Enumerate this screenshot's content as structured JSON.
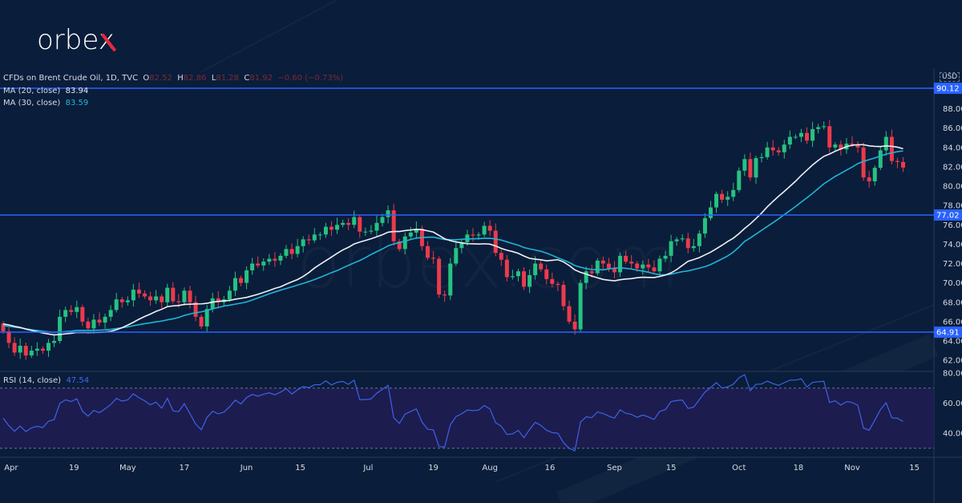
{
  "logo": {
    "text": "orbex"
  },
  "watermark": "orbex.com",
  "legend": {
    "symbol": "CFDs on Brent Crude Oil, 1D, TVC",
    "o_label": "O",
    "o": "82.52",
    "h_label": "H",
    "h": "82.86",
    "l_label": "L",
    "l": "81.28",
    "c_label": "C",
    "c": "81.92",
    "change": "−0.60 (−0.73%)",
    "ma20_label": "MA (20, close)",
    "ma20": "83.94",
    "ma30_label": "MA (30, close)",
    "ma30": "83.59",
    "rsi_label": "RSI (14, close)",
    "rsi": "47.54"
  },
  "colors": {
    "up": "#26c281",
    "down": "#ec3a4c",
    "ma20": "#eef0f4",
    "ma30": "#1fb5d6",
    "level": "#2962ff",
    "rsi": "#3d62e8",
    "rsi_band": "#1d1c4f"
  },
  "chart_data": {
    "type": "candlestick",
    "title": "CFDs on Brent Crude Oil, 1D, TVC",
    "currency": "USD",
    "ylim": [
      60.6,
      90.5
    ],
    "y_ticks": [
      "88.00",
      "86.00",
      "84.00",
      "82.00",
      "80.00",
      "78.00",
      "76.00",
      "74.00",
      "72.00",
      "70.00",
      "68.00",
      "66.00",
      "64.00",
      "62.00"
    ],
    "levels": [
      "90.12",
      "77.02",
      "64.91"
    ],
    "x_ticks": [
      {
        "label": "Apr",
        "bar": 1.4
      },
      {
        "label": "19",
        "bar": 12.5
      },
      {
        "label": "May",
        "bar": 22
      },
      {
        "label": "17",
        "bar": 32
      },
      {
        "label": "Jun",
        "bar": 43
      },
      {
        "label": "15",
        "bar": 52.5
      },
      {
        "label": "Jul",
        "bar": 64.5
      },
      {
        "label": "19",
        "bar": 76
      },
      {
        "label": "Aug",
        "bar": 86
      },
      {
        "label": "16",
        "bar": 96.6
      },
      {
        "label": "Sep",
        "bar": 108
      },
      {
        "label": "15",
        "bar": 118
      },
      {
        "label": "Oct",
        "bar": 130
      },
      {
        "label": "18",
        "bar": 140.5
      },
      {
        "label": "Nov",
        "bar": 150
      },
      {
        "label": "15",
        "bar": 161
      }
    ],
    "first_open": 65.8,
    "close": [
      65.0,
      63.8,
      62.8,
      63.5,
      62.5,
      63.0,
      63.2,
      63.0,
      63.8,
      64.0,
      66.5,
      67.2,
      67.0,
      67.5,
      66.0,
      65.3,
      66.2,
      65.9,
      66.5,
      67.2,
      68.3,
      68.0,
      68.2,
      69.3,
      68.9,
      68.6,
      68.2,
      68.6,
      68.0,
      69.5,
      68.1,
      68.0,
      69.2,
      68.0,
      66.5,
      65.5,
      67.3,
      68.4,
      68.0,
      68.3,
      69.2,
      70.5,
      70.0,
      71.3,
      72.0,
      71.8,
      72.2,
      72.5,
      72.3,
      72.8,
      73.5,
      73.0,
      73.8,
      74.5,
      74.4,
      75.0,
      75.0,
      75.8,
      75.5,
      76.0,
      76.2,
      76.0,
      76.8,
      75.3,
      75.3,
      75.4,
      76.2,
      76.8,
      77.5,
      74.3,
      73.5,
      74.8,
      75.2,
      75.6,
      73.8,
      72.6,
      72.5,
      68.8,
      68.7,
      72.0,
      73.6,
      74.2,
      75.0,
      74.9,
      75.0,
      75.9,
      75.4,
      73.1,
      72.4,
      70.6,
      70.7,
      71.2,
      69.6,
      70.8,
      72.0,
      71.4,
      70.4,
      69.9,
      69.8,
      67.6,
      66.0,
      65.2,
      70.0,
      71.2,
      71.0,
      72.3,
      72.0,
      71.5,
      71.1,
      72.8,
      72.2,
      72.0,
      71.5,
      71.9,
      71.6,
      71.2,
      72.5,
      72.8,
      74.3,
      74.5,
      74.6,
      73.6,
      73.8,
      75.1,
      76.7,
      77.8,
      79.2,
      78.6,
      78.9,
      79.6,
      81.6,
      82.8,
      80.9,
      82.9,
      83.0,
      84.0,
      83.7,
      83.5,
      84.3,
      85.1,
      85.1,
      85.5,
      84.7,
      85.9,
      86.1,
      86.2,
      84.0,
      84.3,
      83.8,
      84.4,
      84.3,
      84.0,
      80.9,
      80.5,
      81.9,
      83.7,
      85.1,
      82.6,
      82.5,
      81.92
    ],
    "ma_periods": [
      20,
      30
    ],
    "rsi": {
      "period": 14,
      "ylim": [
        26,
        83
      ],
      "y_ticks": [
        "80.00",
        "60.00",
        "40.00"
      ],
      "band": [
        70,
        30
      ]
    }
  }
}
